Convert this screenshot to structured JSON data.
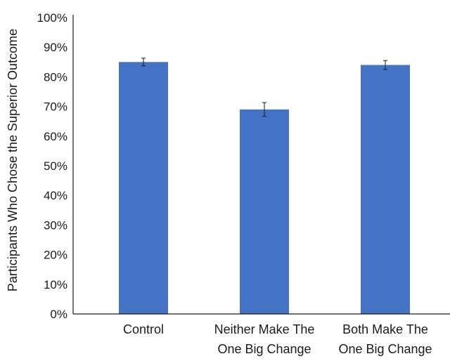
{
  "chart_data": {
    "type": "bar",
    "title": "",
    "xlabel": "",
    "ylabel": "Participants Who Chose the Superior Outcome",
    "categories": [
      [
        "Control"
      ],
      [
        "Neither Make The",
        "One Big Change"
      ],
      [
        "Both Make The",
        "One Big Change"
      ]
    ],
    "values": [
      85,
      69,
      84
    ],
    "error_bars": [
      1.3,
      2.3,
      1.5
    ],
    "ylim": [
      0,
      100
    ],
    "yticks": [
      0,
      10,
      20,
      30,
      40,
      50,
      60,
      70,
      80,
      90,
      100
    ],
    "tick_format": "percent",
    "grid": false,
    "legend": "none",
    "bar_color": "#4472C4",
    "axis_color": "#1a1a1a"
  }
}
